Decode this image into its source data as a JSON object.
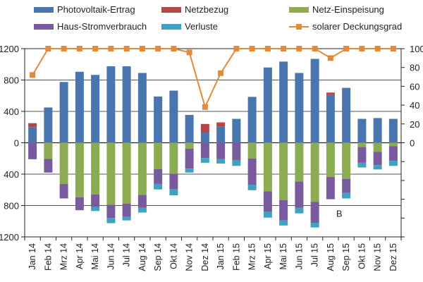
{
  "chart_data": {
    "type": "bar",
    "subtype": "stacked-bar-with-line",
    "title": "",
    "xlabel": "",
    "ylabel": "",
    "y2label": "",
    "categories": [
      "Jan 14",
      "Feb 14",
      "Mrz 14",
      "Apr 14",
      "Mai 14",
      "Jun 14",
      "Jul 14",
      "Aug 14",
      "Sep 14",
      "Okt 14",
      "Nov 14",
      "Dez 14",
      "Jan 15",
      "Feb 15",
      "Mrz 15",
      "Apr 15",
      "Mai 15",
      "Jun 15",
      "Jul 15",
      "Aug 15",
      "Sep 15",
      "Okt 15",
      "Nov 15",
      "Dez 15"
    ],
    "ylim": [
      -1200,
      1200
    ],
    "yticks": [
      -1200,
      -800,
      -400,
      0,
      400,
      800,
      1200
    ],
    "ytick_labels": [
      "1200",
      "800",
      "400",
      "0",
      "400",
      "800",
      "1200"
    ],
    "y2lim": [
      -100,
      100
    ],
    "y2ticks": [
      0,
      20,
      40,
      60,
      80,
      100
    ],
    "y2tick_labels": [
      "0",
      "20",
      "40",
      "60",
      "80",
      "100"
    ],
    "grid": true,
    "legend_position": "top",
    "series": [
      {
        "name": "Photovoltaik-Ertrag",
        "type": "bar",
        "stack": "pos",
        "color": "#4a76b0",
        "values": [
          200,
          450,
          775,
          905,
          865,
          975,
          975,
          890,
          590,
          665,
          350,
          130,
          210,
          305,
          585,
          960,
          1035,
          890,
          1070,
          610,
          700,
          305,
          315,
          305
        ]
      },
      {
        "name": "Netzbezug",
        "type": "bar",
        "stack": "pos",
        "color": "#b94646",
        "values": [
          50,
          0,
          0,
          0,
          0,
          0,
          0,
          0,
          0,
          0,
          5,
          110,
          50,
          0,
          0,
          0,
          0,
          0,
          0,
          30,
          0,
          0,
          0,
          0
        ]
      },
      {
        "name": "Netz-Einspeisung",
        "type": "bar",
        "stack": "neg",
        "color": "#8cac52",
        "values": [
          0,
          -205,
          -525,
          -695,
          -660,
          -790,
          -775,
          -665,
          -335,
          -395,
          -75,
          0,
          0,
          0,
          -200,
          -620,
          -730,
          -495,
          -755,
          -435,
          -460,
          -55,
          -115,
          -45
        ]
      },
      {
        "name": "Haus-Stromverbrauch",
        "type": "bar",
        "stack": "neg",
        "color": "#7a5a9e",
        "values": [
          -210,
          -175,
          -185,
          -165,
          -160,
          -170,
          -170,
          -165,
          -190,
          -200,
          -255,
          -195,
          -210,
          -220,
          -335,
          -260,
          -260,
          -335,
          -265,
          -285,
          -180,
          -200,
          -170,
          -185
        ]
      },
      {
        "name": "Verluste",
        "type": "bar",
        "stack": "neg",
        "color": "#3fa3bf",
        "values": [
          0,
          0,
          0,
          0,
          -50,
          -65,
          -45,
          -60,
          -70,
          -75,
          -50,
          -60,
          -55,
          -75,
          -70,
          -75,
          -65,
          -70,
          -60,
          0,
          -70,
          -60,
          -55,
          -65
        ]
      },
      {
        "name": "solarer Deckungsgrad",
        "type": "line",
        "axis": "right",
        "color": "#e5883a",
        "marker": "square",
        "values": [
          72,
          100,
          100,
          100,
          100,
          100,
          100,
          100,
          100,
          100,
          96,
          38,
          74,
          100,
          100,
          100,
          100,
          100,
          100,
          90,
          100,
          100,
          100,
          100
        ]
      }
    ],
    "annotations": [
      {
        "text": "B",
        "category": "Aug 15",
        "y": -900
      }
    ]
  },
  "legend": {
    "items": [
      {
        "label": "Photovoltaik-Ertrag",
        "kind": "swatch",
        "color": "#4a76b0"
      },
      {
        "label": "Netzbezug",
        "kind": "swatch",
        "color": "#b94646"
      },
      {
        "label": "Netz-Einspeisung",
        "kind": "swatch",
        "color": "#8cac52"
      },
      {
        "label": "Haus-Stromverbrauch",
        "kind": "swatch",
        "color": "#7a5a9e"
      },
      {
        "label": "Verluste",
        "kind": "swatch",
        "color": "#3fa3bf"
      },
      {
        "label": "solarer Deckungsgrad",
        "kind": "line-marker",
        "color": "#e5883a"
      }
    ]
  }
}
